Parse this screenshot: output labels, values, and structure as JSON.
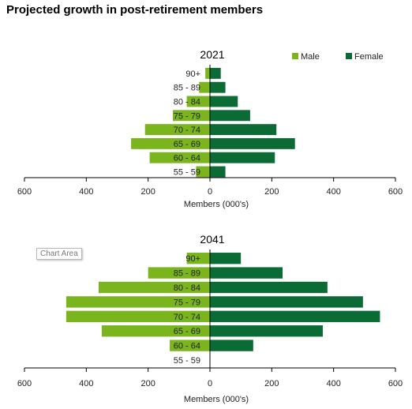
{
  "page": {
    "title": "Projected growth in post-retirement members"
  },
  "legend": {
    "male": "Male",
    "female": "Female"
  },
  "tooltip": {
    "text": "Chart Area"
  },
  "chart_data": [
    {
      "type": "bar",
      "orientation": "horizontal-population-pyramid",
      "title": "2021",
      "xlabel": "Members (000's)",
      "categories": [
        "90+",
        "85 - 89",
        "80 - 84",
        "75 - 79",
        "70 - 74",
        "65 - 69",
        "60 - 64",
        "55 - 59"
      ],
      "series": [
        {
          "name": "Male",
          "color": "#7ab51d",
          "values": [
            15,
            35,
            75,
            120,
            210,
            255,
            195,
            45
          ]
        },
        {
          "name": "Female",
          "color": "#0b6b35",
          "values": [
            35,
            50,
            90,
            130,
            215,
            275,
            210,
            50
          ]
        }
      ],
      "xticks": [
        "600",
        "400",
        "200",
        "0",
        "200",
        "400",
        "600"
      ],
      "xlim": [
        -600,
        600
      ],
      "legend_position": "top-right"
    },
    {
      "type": "bar",
      "orientation": "horizontal-population-pyramid",
      "title": "2041",
      "xlabel": "Members (000's)",
      "categories": [
        "90+",
        "85 - 89",
        "80 - 84",
        "75 - 79",
        "70 - 74",
        "65 - 69",
        "60 - 64",
        "55 - 59"
      ],
      "series": [
        {
          "name": "Male",
          "color": "#7ab51d",
          "values": [
            75,
            200,
            360,
            465,
            465,
            350,
            130,
            0
          ]
        },
        {
          "name": "Female",
          "color": "#0b6b35",
          "values": [
            100,
            235,
            380,
            495,
            550,
            365,
            140,
            0
          ]
        }
      ],
      "xticks": [
        "600",
        "400",
        "200",
        "0",
        "200",
        "400",
        "600"
      ],
      "xlim": [
        -600,
        600
      ]
    }
  ]
}
